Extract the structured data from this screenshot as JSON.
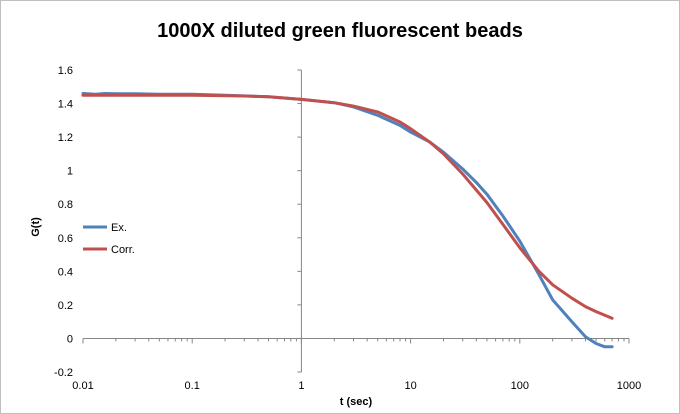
{
  "chart_data": {
    "type": "line",
    "title": "1000X diluted green fluorescent beads",
    "xlabel": "t (sec)",
    "ylabel": "G(t)",
    "x_scale": "log",
    "xlim": [
      0.01,
      1000
    ],
    "ylim": [
      -0.2,
      1.6
    ],
    "x_ticks": [
      "0.01",
      "0.1",
      "1",
      "10",
      "100",
      "1000"
    ],
    "y_ticks": [
      "-0.2",
      "0",
      "0.2",
      "0.4",
      "0.6",
      "0.8",
      "1",
      "1.2",
      "1.4",
      "1.6"
    ],
    "grid": false,
    "legend_position": "left",
    "series": [
      {
        "name": "Ex.",
        "color": "#4f81bd",
        "x": [
          0.01,
          0.013,
          0.016,
          0.02,
          0.03,
          0.05,
          0.1,
          0.2,
          0.5,
          1,
          2,
          3,
          5,
          8,
          10,
          15,
          20,
          30,
          40,
          50,
          70,
          100,
          150,
          200,
          300,
          400,
          500,
          600,
          700
        ],
        "y": [
          1.46,
          1.455,
          1.46,
          1.458,
          1.458,
          1.455,
          1.455,
          1.45,
          1.44,
          1.425,
          1.405,
          1.38,
          1.33,
          1.27,
          1.23,
          1.17,
          1.11,
          1.01,
          0.93,
          0.86,
          0.73,
          0.58,
          0.38,
          0.23,
          0.1,
          0.01,
          -0.03,
          -0.05,
          -0.05
        ]
      },
      {
        "name": "Corr.",
        "color": "#c0504d",
        "x": [
          0.01,
          0.03,
          0.1,
          0.3,
          0.5,
          1,
          2,
          3,
          5,
          8,
          10,
          15,
          20,
          30,
          50,
          70,
          100,
          150,
          200,
          300,
          400,
          500,
          700
        ],
        "y": [
          1.45,
          1.45,
          1.449,
          1.445,
          1.44,
          1.425,
          1.405,
          1.385,
          1.35,
          1.29,
          1.25,
          1.17,
          1.1,
          0.98,
          0.81,
          0.68,
          0.54,
          0.4,
          0.32,
          0.24,
          0.19,
          0.16,
          0.12
        ]
      }
    ]
  }
}
